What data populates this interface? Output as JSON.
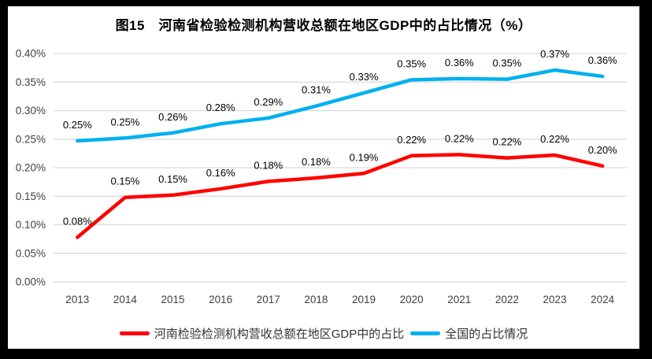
{
  "title": "图15　河南省检验检测机构营收总额在地区GDP中的占比情况（%）",
  "chart_data": {
    "type": "line",
    "categories": [
      "2013",
      "2014",
      "2015",
      "2016",
      "2017",
      "2018",
      "2019",
      "2020",
      "2021",
      "2022",
      "2023",
      "2024"
    ],
    "series": [
      {
        "name": "河南检验检测机构营收总额在地区GDP中的占比",
        "color": "#FF0000",
        "values": [
          0.08,
          0.15,
          0.15,
          0.16,
          0.18,
          0.18,
          0.19,
          0.22,
          0.22,
          0.22,
          0.22,
          0.2
        ],
        "labels": [
          "0.08%",
          "0.15%",
          "0.15%",
          "0.16%",
          "0.18%",
          "0.18%",
          "0.19%",
          "0.22%",
          "0.22%",
          "0.22%",
          "0.22%",
          "0.20%"
        ],
        "plot_values": [
          0.078,
          0.148,
          0.152,
          0.163,
          0.176,
          0.182,
          0.19,
          0.221,
          0.223,
          0.217,
          0.222,
          0.203
        ]
      },
      {
        "name": "全国的占比情况",
        "color": "#00B0F0",
        "values": [
          0.25,
          0.25,
          0.26,
          0.28,
          0.29,
          0.31,
          0.33,
          0.35,
          0.36,
          0.35,
          0.37,
          0.36
        ],
        "labels": [
          "0.25%",
          "0.25%",
          "0.26%",
          "0.28%",
          "0.29%",
          "0.31%",
          "0.33%",
          "0.35%",
          "0.36%",
          "0.35%",
          "0.37%",
          "0.36%"
        ],
        "plot_values": [
          0.247,
          0.252,
          0.261,
          0.277,
          0.287,
          0.308,
          0.331,
          0.354,
          0.356,
          0.355,
          0.371,
          0.36
        ]
      }
    ],
    "title": "图15　河南省检验检测机构营收总额在地区GDP中的占比情况（%）",
    "xlabel": "",
    "ylabel": "",
    "ylim": [
      0,
      0.4
    ],
    "y_ticks": [
      "0.00%",
      "0.05%",
      "0.10%",
      "0.15%",
      "0.20%",
      "0.25%",
      "0.30%",
      "0.35%",
      "0.40%"
    ],
    "grid": true,
    "legend_position": "bottom",
    "unit": "percent of GDP"
  },
  "colors": {
    "frame_border": "#000000",
    "background": "#FFFFFF",
    "grid": "#D9D9D9",
    "axis_text": "#404040",
    "data_label": "#000000",
    "henan_line": "#FF0000",
    "national_line": "#00B0F0"
  }
}
